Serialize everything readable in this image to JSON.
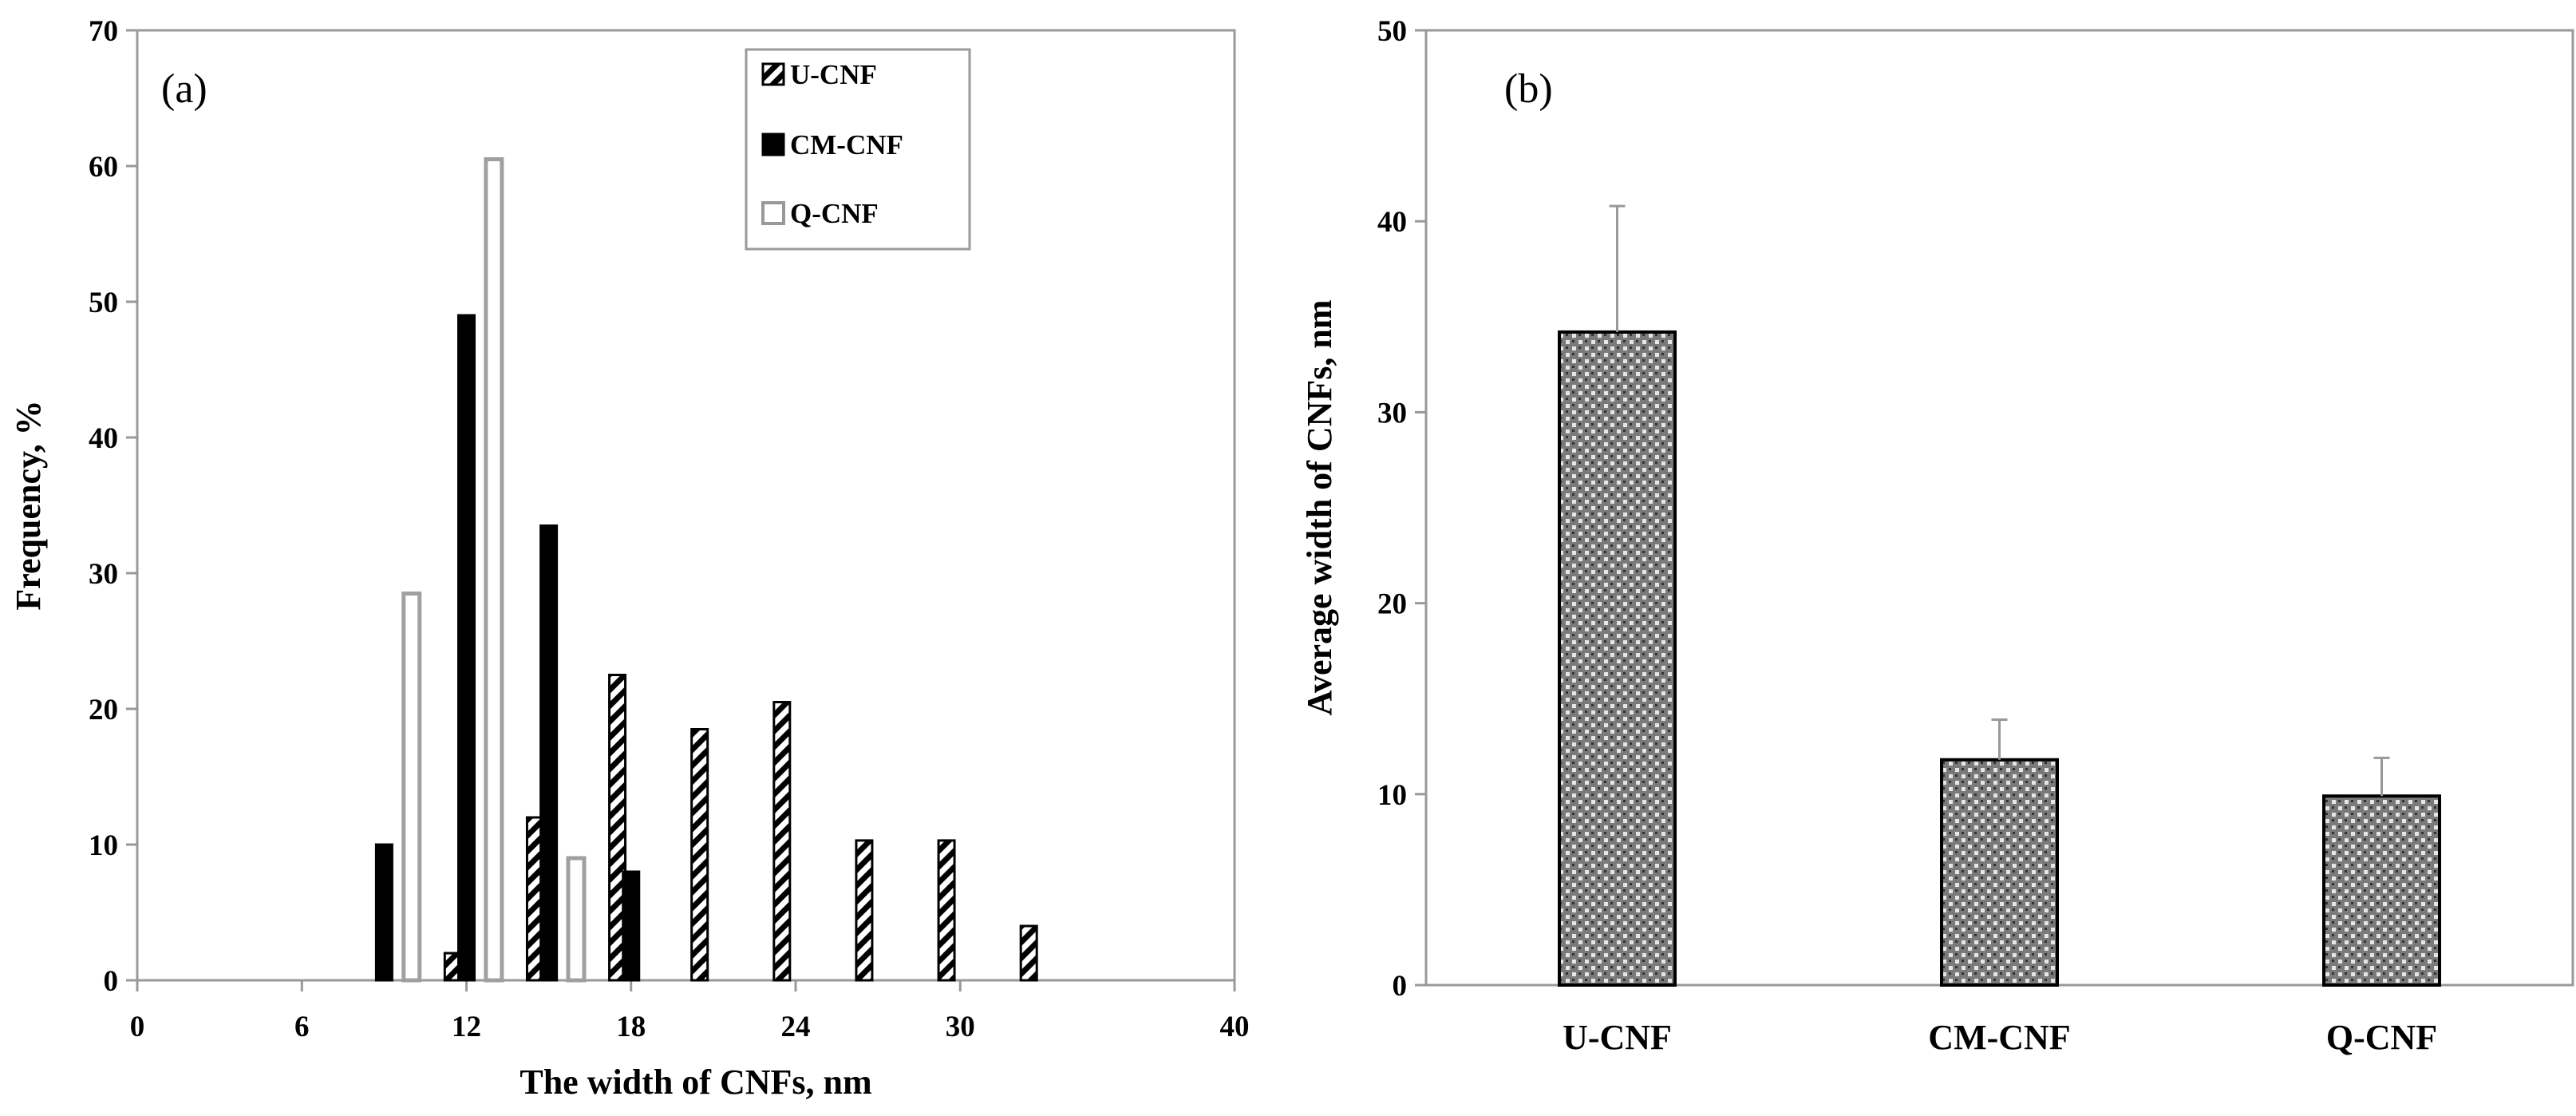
{
  "chart_data": [
    {
      "type": "bar",
      "panel_label": "(a)",
      "title": "",
      "xlabel": "The width of CNFs, nm",
      "ylabel": "Frequency, %",
      "xlim": [
        0,
        40
      ],
      "ylim": [
        0,
        70
      ],
      "x_ticks": [
        "0",
        "6",
        "12",
        "18",
        "24",
        "30",
        "40"
      ],
      "y_ticks": [
        "0",
        "10",
        "20",
        "30",
        "40",
        "50",
        "60",
        "70"
      ],
      "legend": [
        "U-CNF",
        "CM-CNF",
        "Q-CNF"
      ],
      "legend_position": "top-right",
      "series": [
        {
          "name": "U-CNF",
          "style": "hatched",
          "x": [
            11.5,
            14.5,
            17.5,
            20.5,
            23.5,
            26.5,
            29.5,
            32.5
          ],
          "values": [
            2,
            12,
            22.5,
            18.5,
            20.5,
            10.3,
            10.3,
            4
          ]
        },
        {
          "name": "CM-CNF",
          "style": "solid",
          "x": [
            9,
            12,
            15,
            18
          ],
          "values": [
            10,
            49,
            33.5,
            8
          ]
        },
        {
          "name": "Q-CNF",
          "style": "outline",
          "x": [
            10,
            13,
            16
          ],
          "values": [
            28.5,
            60.5,
            9
          ]
        }
      ]
    },
    {
      "type": "bar",
      "panel_label": "(b)",
      "title": "",
      "xlabel": "",
      "ylabel": "Average width of CNFs, nm",
      "ylim": [
        0,
        50
      ],
      "y_ticks": [
        "0",
        "10",
        "20",
        "30",
        "40",
        "50"
      ],
      "categories": [
        "U-CNF",
        "CM-CNF",
        "Q-CNF"
      ],
      "values": [
        34.2,
        11.8,
        9.9
      ],
      "error": [
        6.6,
        2.1,
        2.0
      ]
    }
  ]
}
